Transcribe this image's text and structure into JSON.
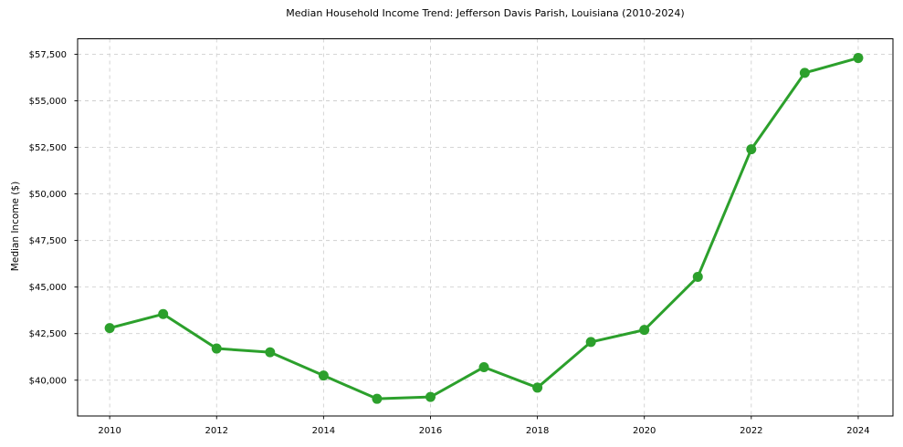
{
  "page": {
    "background": "#ffffff"
  },
  "chart_data": {
    "type": "line",
    "title": "Median Household Income Trend: Jefferson Davis Parish, Louisiana (2010-2024)",
    "xlabel": "",
    "ylabel": "Median Income ($)",
    "x": [
      2010,
      2011,
      2012,
      2013,
      2014,
      2015,
      2016,
      2017,
      2018,
      2019,
      2020,
      2021,
      2022,
      2023,
      2024
    ],
    "values": [
      42800,
      43550,
      41700,
      41500,
      40250,
      39000,
      39100,
      40700,
      39600,
      42050,
      42700,
      45550,
      52400,
      56500,
      57300
    ],
    "series_name": "Median Household Income",
    "xlim": [
      2009.4,
      2024.65
    ],
    "ylim": [
      38078,
      58331
    ],
    "xticks": [
      {
        "value": 2010,
        "label": "2010"
      },
      {
        "value": 2012,
        "label": "2012"
      },
      {
        "value": 2014,
        "label": "2014"
      },
      {
        "value": 2016,
        "label": "2016"
      },
      {
        "value": 2018,
        "label": "2018"
      },
      {
        "value": 2020,
        "label": "2020"
      },
      {
        "value": 2022,
        "label": "2022"
      },
      {
        "value": 2024,
        "label": "2024"
      }
    ],
    "yticks": [
      {
        "value": 40000,
        "label": "$40,000"
      },
      {
        "value": 42500,
        "label": "$42,500"
      },
      {
        "value": 45000,
        "label": "$45,000"
      },
      {
        "value": 47500,
        "label": "$47,500"
      },
      {
        "value": 50000,
        "label": "$50,000"
      },
      {
        "value": 52500,
        "label": "$52,500"
      },
      {
        "value": 55000,
        "label": "$55,000"
      },
      {
        "value": 57500,
        "label": "$57,500"
      }
    ],
    "grid": true,
    "legend": "none",
    "line_color": "#2ca02c",
    "marker": "circle",
    "marker_diameter": 11,
    "line_width": 3,
    "grid_color": "#cfcfcf",
    "grid_dash": "4 4",
    "spine_color": "#000000",
    "tick_color": "#000000"
  }
}
